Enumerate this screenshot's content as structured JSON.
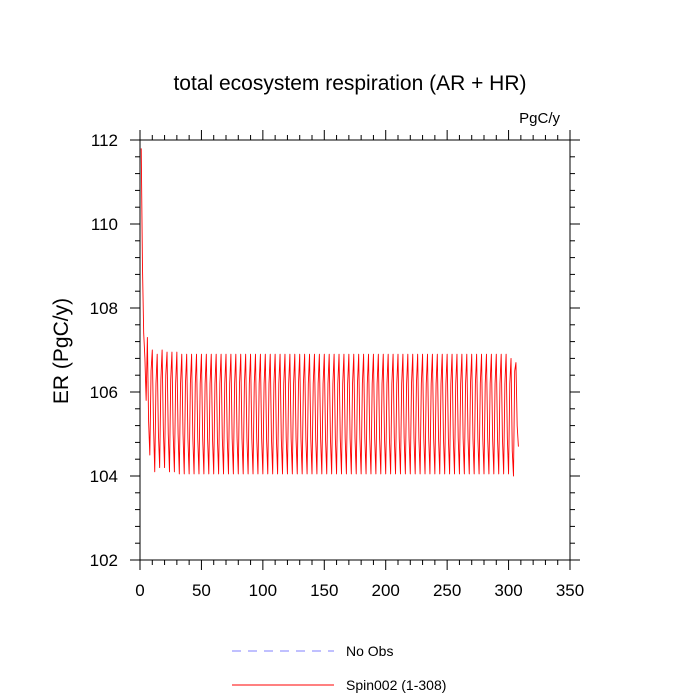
{
  "chart_data": {
    "type": "line",
    "title": "total ecosystem respiration (AR + HR)",
    "units": "PgC/y",
    "ylabel": "ER  (PgC/y)",
    "xlabel": "",
    "xlim": [
      0,
      350
    ],
    "ylim": [
      102,
      112
    ],
    "xticks": [
      0,
      50,
      100,
      150,
      200,
      250,
      300,
      350
    ],
    "yticks": [
      102,
      104,
      106,
      108,
      110,
      112
    ],
    "grid": false,
    "legend_position": "bottom-center",
    "series": [
      {
        "name": "No Obs",
        "color": "#8080ff",
        "style": "dashed",
        "values": []
      },
      {
        "name": "Spin002 (1-308)",
        "color": "#ff0000",
        "style": "solid",
        "x_start": 1,
        "x_end": 308,
        "cycle_length": 4,
        "values": [
          111.8,
          109.0,
          107.4,
          106.8,
          105.8,
          107.3,
          105.3,
          104.5,
          106.5,
          107.0,
          105.2,
          104.1,
          106.2,
          106.9,
          105.0,
          104.2,
          106.3,
          107.0,
          105.1,
          104.2,
          106.4,
          106.95,
          105.0,
          104.1,
          106.3,
          106.95,
          105.0,
          104.1,
          106.2,
          106.95,
          105.0,
          104.05,
          106.2,
          106.9,
          105.0,
          104.05
        ],
        "steady_state_pattern": [
          106.2,
          106.9,
          104.9,
          104.05
        ],
        "final_values": [
          106.2,
          106.8,
          104.6,
          104.0,
          106.5,
          106.7,
          105.2,
          104.7
        ]
      }
    ]
  }
}
